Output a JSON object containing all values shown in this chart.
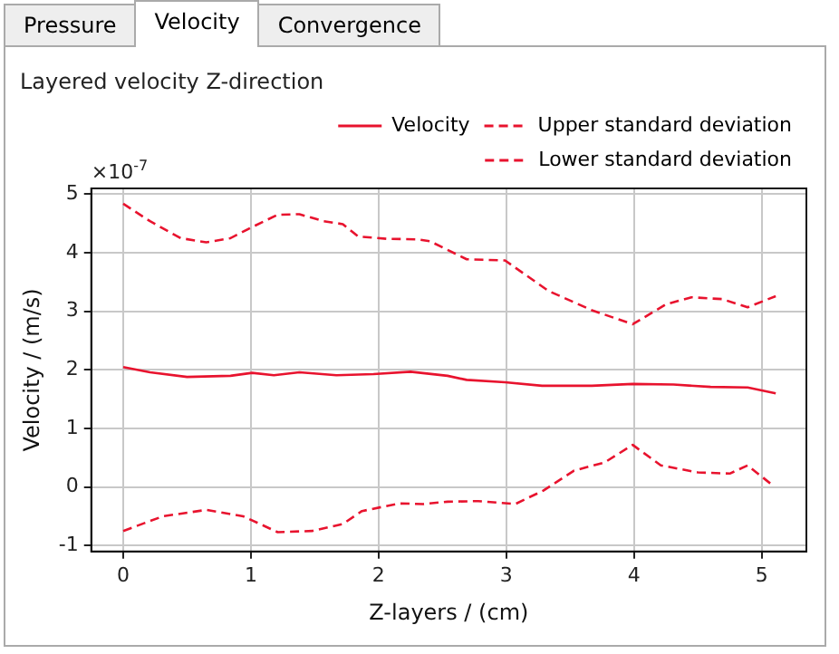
{
  "chart_data": {
    "type": "line",
    "title": "Layered velocity Z-direction",
    "xlabel": "Z-layers / (cm)",
    "ylabel": "Velocity / (m/s)",
    "annotations": [
      "×10$^{-7}$",
      "Pressure",
      "Velocity",
      "Convergence"
    ],
    "xlim": [
      -0.25,
      5.35
    ],
    "ylim": [
      -1.1,
      5.1
    ],
    "xticks": [
      0,
      1,
      2,
      3,
      4,
      5
    ],
    "yticks": [
      -1,
      0,
      1,
      2,
      3,
      4,
      5
    ],
    "grid": true,
    "legend": "top right",
    "marker": "none",
    "series": [
      {
        "name": "Velocity",
        "color": "#e8132e",
        "line_style": "solid",
        "x": [
          0,
          0.21,
          0.5,
          0.84,
          1.01,
          1.18,
          1.38,
          1.67,
          1.96,
          2.25,
          2.54,
          2.69,
          2.99,
          3.28,
          3.67,
          3.99,
          4.31,
          4.6,
          4.89,
          5.11
        ],
        "values": [
          2.05,
          1.96,
          1.88,
          1.9,
          1.95,
          1.91,
          1.96,
          1.91,
          1.93,
          1.97,
          1.9,
          1.83,
          1.79,
          1.73,
          1.73,
          1.76,
          1.75,
          1.71,
          1.7,
          1.6
        ]
      },
      {
        "name": "Upper standard deviation",
        "color": "#e8132e",
        "line_style": "dashed",
        "x": [
          0,
          0.21,
          0.45,
          0.65,
          0.84,
          1.01,
          1.21,
          1.38,
          1.57,
          1.72,
          1.84,
          2.06,
          2.3,
          2.4,
          2.69,
          2.99,
          3.33,
          3.67,
          3.99,
          4.25,
          4.45,
          4.69,
          4.89,
          5.11
        ],
        "values": [
          4.84,
          4.54,
          4.25,
          4.18,
          4.25,
          4.44,
          4.65,
          4.66,
          4.54,
          4.49,
          4.28,
          4.24,
          4.23,
          4.2,
          3.89,
          3.87,
          3.35,
          3.02,
          2.78,
          3.12,
          3.24,
          3.21,
          3.07,
          3.26
        ]
      },
      {
        "name": "Lower standard deviation",
        "color": "#e8132e",
        "line_style": "dashed",
        "x": [
          0,
          0.31,
          0.65,
          0.94,
          1.21,
          1.48,
          1.72,
          1.87,
          2.16,
          2.35,
          2.54,
          2.78,
          3.07,
          3.29,
          3.53,
          3.77,
          3.99,
          4.21,
          4.5,
          4.75,
          4.89,
          5.08
        ],
        "values": [
          -0.75,
          -0.5,
          -0.39,
          -0.5,
          -0.77,
          -0.75,
          -0.63,
          -0.41,
          -0.28,
          -0.29,
          -0.25,
          -0.24,
          -0.29,
          -0.06,
          0.28,
          0.42,
          0.72,
          0.37,
          0.25,
          0.23,
          0.37,
          0.04
        ]
      }
    ]
  }
}
